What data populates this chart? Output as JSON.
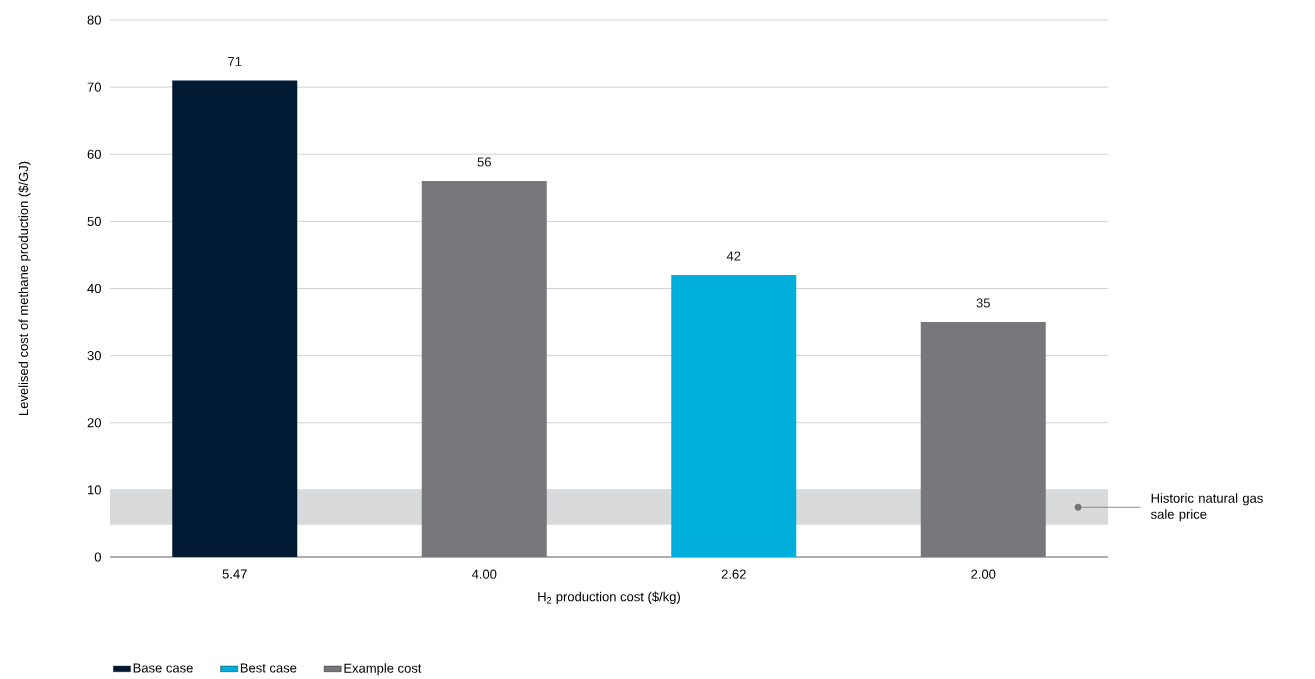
{
  "chart_data": {
    "type": "bar",
    "xlabel": "H$_{2}$ production cost ($/kg)",
    "ylabel": "Levelised cost of methane production ($/GJ)",
    "categories": [
      "5.47",
      "4.00",
      "2.62",
      "2.00"
    ],
    "series": [
      {
        "name": "Base case",
        "color": "#001a33",
        "values": [
          71,
          null,
          null,
          null
        ]
      },
      {
        "name": "Best case",
        "color": "#00aedb",
        "values": [
          null,
          null,
          42,
          null
        ]
      },
      {
        "name": "Example cost",
        "color": "#77777c",
        "values": [
          null,
          56,
          null,
          35
        ]
      }
    ],
    "ylim": [
      0,
      80
    ],
    "yticks": [
      0,
      10,
      20,
      30,
      40,
      50,
      60,
      70,
      80
    ],
    "grid": "y",
    "data_labels": true,
    "legend": "bottom left",
    "bands": [
      {
        "axis": "y",
        "from": 4.8,
        "to": 10,
        "label": "Historic natural gas sale price",
        "color": "#d9dadb"
      }
    ]
  }
}
